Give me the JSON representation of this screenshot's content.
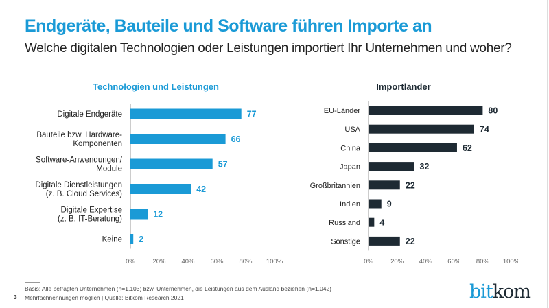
{
  "title": "Endgeräte, Bauteile und Software führen Importe an",
  "subtitle": "Welche digitalen Technologien oder Leistungen importiert Ihr Unternehmen und woher?",
  "chart_data": [
    {
      "type": "bar",
      "orientation": "horizontal",
      "title": "Technologien und Leistungen",
      "categories": [
        [
          "Digitale Endgeräte"
        ],
        [
          "Bauteile bzw. Hardware-",
          "Komponenten"
        ],
        [
          "Software-Anwendungen/",
          "-Module"
        ],
        [
          "Digitale Dienstleistungen",
          "(z. B. Cloud Services)"
        ],
        [
          "Digitale Expertise",
          "(z. B. IT-Beratung)"
        ],
        [
          "Keine"
        ]
      ],
      "values": [
        77,
        66,
        57,
        42,
        12,
        2
      ],
      "xlim": [
        0,
        100
      ],
      "xticks": [
        "0%",
        "20%",
        "40%",
        "60%",
        "80%",
        "100%"
      ],
      "color": "#1a9ad6",
      "label_color": "#1a9ad6"
    },
    {
      "type": "bar",
      "orientation": "horizontal",
      "title": "Importländer",
      "categories": [
        [
          "EU-Länder"
        ],
        [
          "USA"
        ],
        [
          "China"
        ],
        [
          "Japan"
        ],
        [
          "Großbritannien"
        ],
        [
          "Indien"
        ],
        [
          "Russland"
        ],
        [
          "Sonstige"
        ]
      ],
      "values": [
        80,
        74,
        62,
        32,
        22,
        9,
        4,
        22
      ],
      "xlim": [
        0,
        100
      ],
      "xticks": [
        "0%",
        "20%",
        "40%",
        "60%",
        "80%",
        "100%"
      ],
      "color": "#1e2a33",
      "label_color": "#1e2a33"
    }
  ],
  "footer": {
    "basis": "Basis: Alle befragten Unternehmen (n=1.103) bzw. Unternehmen, die Leistungen aus dem Ausland beziehen (n=1.042)",
    "note": "Mehrfachnennungen möglich | Quelle: Bitkom Research 2021",
    "page": "3"
  },
  "logo": {
    "part1": "bit",
    "part2": "kom"
  }
}
